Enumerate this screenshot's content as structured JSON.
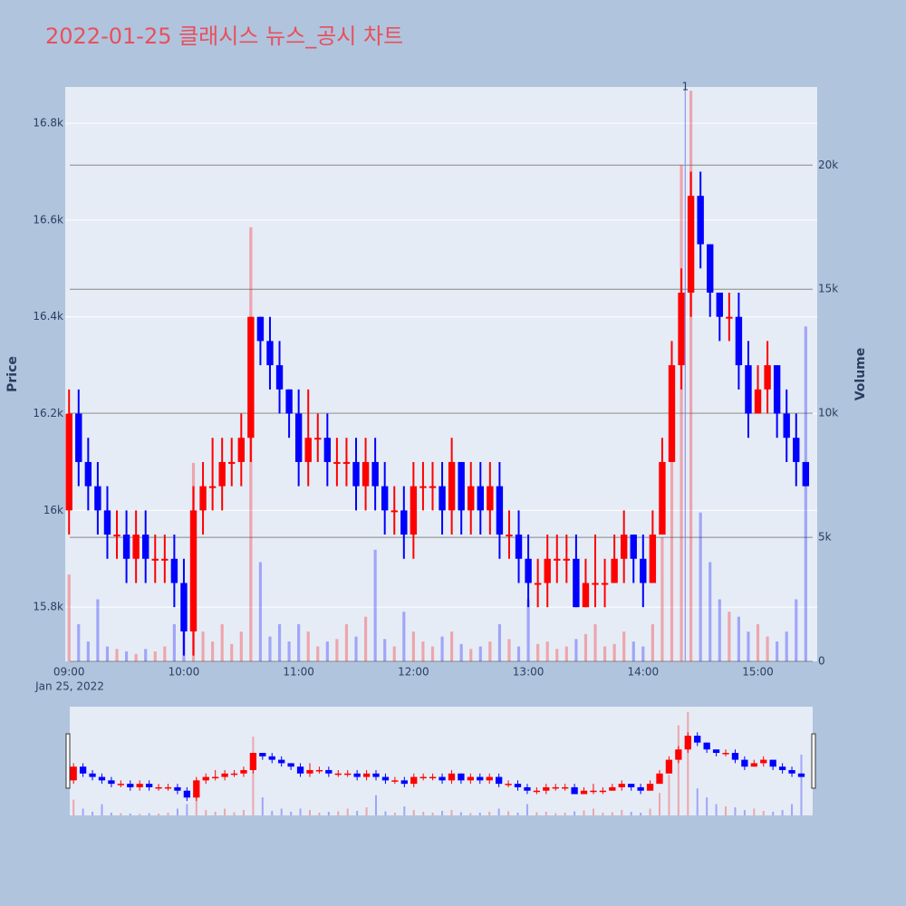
{
  "chart_data": {
    "type": "candlestick",
    "title": "2022-01-25 클래시스 뉴스_공시 차트",
    "ylabel": "Price",
    "y2label": "Volume",
    "x": [
      "09:00",
      "09:05",
      "09:10",
      "09:15",
      "09:20",
      "09:25",
      "09:30",
      "09:35",
      "09:40",
      "09:45",
      "09:50",
      "09:55",
      "10:00",
      "10:05",
      "10:10",
      "10:15",
      "10:20",
      "10:25",
      "10:30",
      "10:35",
      "10:40",
      "10:45",
      "10:50",
      "10:55",
      "11:00",
      "11:05",
      "11:10",
      "11:15",
      "11:20",
      "11:25",
      "11:30",
      "11:35",
      "11:40",
      "11:45",
      "11:50",
      "11:55",
      "12:00",
      "12:05",
      "12:10",
      "12:15",
      "12:20",
      "12:25",
      "12:30",
      "12:35",
      "12:40",
      "12:45",
      "12:50",
      "12:55",
      "13:00",
      "13:05",
      "13:10",
      "13:15",
      "13:20",
      "13:25",
      "13:30",
      "13:35",
      "13:40",
      "13:45",
      "13:50",
      "13:55",
      "14:00",
      "14:05",
      "14:10",
      "14:15",
      "14:20",
      "14:25",
      "14:30",
      "14:35",
      "14:40",
      "14:45",
      "14:50",
      "14:55",
      "15:00",
      "15:05",
      "15:10",
      "15:15",
      "15:20",
      "15:25"
    ],
    "open": [
      16000,
      16200,
      16100,
      16050,
      16000,
      15950,
      15950,
      15900,
      15950,
      15900,
      15900,
      15900,
      15850,
      15750,
      16000,
      16050,
      16050,
      16100,
      16100,
      16150,
      16400,
      16350,
      16300,
      16250,
      16200,
      16100,
      16150,
      16150,
      16100,
      16100,
      16100,
      16050,
      16100,
      16050,
      16000,
      16000,
      15950,
      16050,
      16050,
      16050,
      16000,
      16100,
      16000,
      16050,
      16000,
      16050,
      15950,
      15950,
      15900,
      15850,
      15850,
      15900,
      15900,
      15900,
      15800,
      15850,
      15850,
      15850,
      15900,
      15950,
      15900,
      15850,
      15950,
      16100,
      16300,
      16450,
      16650,
      16550,
      16450,
      16400,
      16400,
      16300,
      16200,
      16250,
      16300,
      16200,
      16150,
      16100
    ],
    "high": [
      16250,
      16250,
      16150,
      16100,
      16050,
      16000,
      16000,
      16000,
      16000,
      15950,
      15950,
      15950,
      15900,
      16050,
      16100,
      16150,
      16150,
      16150,
      16200,
      16400,
      16400,
      16400,
      16350,
      16250,
      16250,
      16250,
      16200,
      16200,
      16150,
      16150,
      16150,
      16150,
      16150,
      16100,
      16050,
      16050,
      16100,
      16100,
      16100,
      16100,
      16150,
      16100,
      16100,
      16100,
      16100,
      16100,
      16000,
      16000,
      15950,
      15900,
      15950,
      15950,
      15950,
      15950,
      15900,
      15950,
      15900,
      15950,
      16000,
      15950,
      15950,
      16000,
      16150,
      16350,
      16500,
      16700,
      16700,
      16550,
      16450,
      16450,
      16450,
      16350,
      16300,
      16350,
      16300,
      16250,
      16200,
      16100
    ],
    "low": [
      15950,
      16050,
      16000,
      15950,
      15900,
      15900,
      15850,
      15850,
      15850,
      15850,
      15850,
      15800,
      15700,
      15700,
      15950,
      16000,
      16000,
      16050,
      16050,
      16100,
      16300,
      16250,
      16200,
      16150,
      16050,
      16050,
      16100,
      16050,
      16050,
      16050,
      16000,
      16000,
      16000,
      15950,
      15950,
      15900,
      15900,
      16000,
      16000,
      15950,
      15950,
      15950,
      15950,
      15950,
      15950,
      15900,
      15900,
      15850,
      15800,
      15800,
      15800,
      15850,
      15850,
      15800,
      15800,
      15800,
      15800,
      15850,
      15850,
      15850,
      15800,
      15850,
      15950,
      16100,
      16250,
      16400,
      16500,
      16400,
      16350,
      16350,
      16250,
      16150,
      16200,
      16200,
      16150,
      16100,
      16050,
      16050
    ],
    "close": [
      16200,
      16100,
      16050,
      16000,
      15950,
      15950,
      15900,
      15950,
      15900,
      15900,
      15900,
      15850,
      15750,
      16000,
      16050,
      16050,
      16100,
      16100,
      16150,
      16400,
      16350,
      16300,
      16250,
      16200,
      16100,
      16150,
      16150,
      16100,
      16100,
      16100,
      16050,
      16100,
      16050,
      16000,
      16000,
      15950,
      16050,
      16050,
      16050,
      16000,
      16100,
      16000,
      16050,
      16000,
      16050,
      15950,
      15950,
      15900,
      15850,
      15850,
      15900,
      15900,
      15900,
      15800,
      15850,
      15850,
      15850,
      15900,
      15950,
      15900,
      15850,
      15950,
      16100,
      16300,
      16450,
      16650,
      16550,
      16450,
      16400,
      16400,
      16300,
      16200,
      16250,
      16300,
      16200,
      16150,
      16100,
      16050
    ],
    "volume": [
      3500,
      1500,
      800,
      2500,
      600,
      500,
      400,
      300,
      500,
      400,
      600,
      1500,
      2500,
      8000,
      1200,
      800,
      1500,
      700,
      1200,
      17500,
      4000,
      1000,
      1500,
      800,
      1500,
      1200,
      600,
      800,
      900,
      1500,
      1000,
      1800,
      4500,
      900,
      600,
      2000,
      1200,
      800,
      600,
      1000,
      1200,
      700,
      500,
      600,
      800,
      1500,
      900,
      600,
      2500,
      700,
      800,
      500,
      600,
      900,
      1100,
      1500,
      600,
      700,
      1200,
      800,
      600,
      1500,
      5000,
      9000,
      20000,
      23000,
      6000,
      4000,
      2500,
      2000,
      1800,
      1200,
      1500,
      1000,
      800,
      1200,
      2500,
      13500
    ],
    "increasing_color": "#ff0000",
    "decreasing_color": "#0000ff",
    "xlim": [
      "08:58",
      "15:31"
    ],
    "xticks": [
      "09:00",
      "10:00",
      "11:00",
      "12:00",
      "13:00",
      "14:00",
      "15:00"
    ],
    "x_date_label": "Jan 25, 2022",
    "ylim": [
      15688,
      16875
    ],
    "yticks": [
      {
        "value": 15800,
        "label": "15.8k"
      },
      {
        "value": 16000,
        "label": "16k"
      },
      {
        "value": 16200,
        "label": "16.2k"
      },
      {
        "value": 16400,
        "label": "16.4k"
      },
      {
        "value": 16600,
        "label": "16.6k"
      },
      {
        "value": 16800,
        "label": "16.8k"
      }
    ],
    "y2lim": [
      0,
      23150
    ],
    "y2ticks": [
      0,
      {
        "value": 5000,
        "label": "5k"
      },
      {
        "value": 10000,
        "label": "10k"
      },
      {
        "value": 15000,
        "label": "15k"
      },
      {
        "value": 20000,
        "label": "20k"
      }
    ],
    "annotations": [
      {
        "x": "14:22",
        "text": "1"
      }
    ],
    "rangeslider": true
  }
}
